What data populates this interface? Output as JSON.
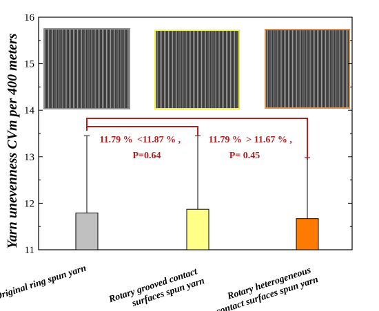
{
  "chart_data": {
    "type": "bar",
    "ylabel": "Yarn unevenness CVm per 400 meters",
    "ylim": [
      11,
      16
    ],
    "yticks": [
      "11",
      "12",
      "13",
      "14",
      "15",
      "16"
    ],
    "categories": [
      [
        "Original ring spun yarn"
      ],
      [
        "Rotary grooved contact",
        "surfaces spun yarn"
      ],
      [
        "Rotary  heterogeneous",
        "contact surfaces spun yarn"
      ]
    ],
    "values": [
      11.79,
      11.87,
      11.67
    ],
    "error_upper": [
      13.45,
      13.45,
      12.98
    ],
    "bar_colors": [
      "#c0c0c0",
      "#ffff88",
      "#ff7a00"
    ],
    "grid": false,
    "annotations": [
      {
        "lines": [
          "11.79 %  <11.87 % ,",
          "P=0.64"
        ]
      },
      {
        "lines": [
          "11.79 %  > 11.67 % ,",
          "P= 0.45"
        ]
      }
    ],
    "annotation_color": "#b02020",
    "inset_image_frame_colors": [
      "#8c8c8c",
      "#f0f040",
      "#d89050"
    ]
  }
}
